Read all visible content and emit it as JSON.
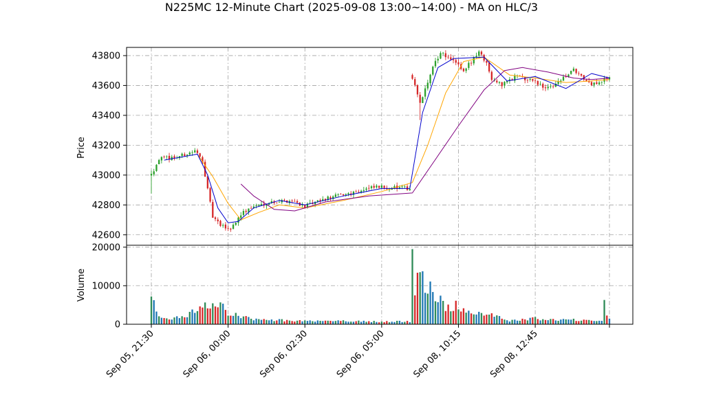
{
  "chart_data": {
    "type": "candlestick",
    "title": "N225MC 12-Minute Chart (2025-09-08 13:00~14:00) - MA on HLC/3",
    "price_panel": {
      "ylabel": "Price",
      "yticks": [
        42600,
        42800,
        43000,
        43200,
        43400,
        43600,
        43800
      ],
      "ylim": [
        42530,
        43855
      ],
      "grid": true
    },
    "volume_panel": {
      "ylabel": "Volume",
      "yticks": [
        0,
        10000,
        20000
      ],
      "ylim": [
        0,
        20500
      ],
      "grid": true
    },
    "x_tick_labels": [
      "Sep 05, 21:30",
      "Sep 06, 00:00",
      "Sep 06, 02:30",
      "Sep 06, 05:00",
      "Sep 08, 10:15",
      "Sep 08, 12:45"
    ],
    "bar_count": 180,
    "x_tick_bar_index": [
      0,
      30,
      60,
      90,
      120,
      150
    ],
    "colors": {
      "up": "#2ca02c",
      "down": "#d62728",
      "vol_up": "#1f77b4",
      "vol_down": "#d62728",
      "vol_other": "#2e8b57",
      "ma_fast": "#0000cc",
      "ma_mid": "#ffa500",
      "ma_slow": "#800080"
    },
    "price_anchors": [
      {
        "i": 0,
        "p": 43000
      },
      {
        "i": 3,
        "p": 43110
      },
      {
        "i": 10,
        "p": 43120
      },
      {
        "i": 17,
        "p": 43160
      },
      {
        "i": 20,
        "p": 43100
      },
      {
        "i": 22,
        "p": 42900
      },
      {
        "i": 24,
        "p": 42720
      },
      {
        "i": 27,
        "p": 42660
      },
      {
        "i": 31,
        "p": 42640
      },
      {
        "i": 35,
        "p": 42740
      },
      {
        "i": 40,
        "p": 42790
      },
      {
        "i": 47,
        "p": 42820
      },
      {
        "i": 55,
        "p": 42830
      },
      {
        "i": 60,
        "p": 42790
      },
      {
        "i": 70,
        "p": 42850
      },
      {
        "i": 80,
        "p": 42890
      },
      {
        "i": 88,
        "p": 42920
      },
      {
        "i": 101,
        "p": 42910
      },
      {
        "i": 102,
        "p": 43650
      },
      {
        "i": 104,
        "p": 43540
      },
      {
        "i": 105,
        "p": 43480
      },
      {
        "i": 110,
        "p": 43720
      },
      {
        "i": 113,
        "p": 43820
      },
      {
        "i": 118,
        "p": 43760
      },
      {
        "i": 122,
        "p": 43700
      },
      {
        "i": 128,
        "p": 43820
      },
      {
        "i": 131,
        "p": 43750
      },
      {
        "i": 133,
        "p": 43650
      },
      {
        "i": 137,
        "p": 43600
      },
      {
        "i": 142,
        "p": 43660
      },
      {
        "i": 148,
        "p": 43640
      },
      {
        "i": 155,
        "p": 43580
      },
      {
        "i": 160,
        "p": 43640
      },
      {
        "i": 165,
        "p": 43700
      },
      {
        "i": 172,
        "p": 43600
      },
      {
        "i": 179,
        "p": 43660
      }
    ],
    "ma_fast_line": [
      {
        "i": 5,
        "p": 43100
      },
      {
        "i": 18,
        "p": 43140
      },
      {
        "i": 22,
        "p": 43000
      },
      {
        "i": 26,
        "p": 42780
      },
      {
        "i": 30,
        "p": 42680
      },
      {
        "i": 34,
        "p": 42690
      },
      {
        "i": 40,
        "p": 42780
      },
      {
        "i": 50,
        "p": 42830
      },
      {
        "i": 60,
        "p": 42800
      },
      {
        "i": 75,
        "p": 42860
      },
      {
        "i": 90,
        "p": 42910
      },
      {
        "i": 101,
        "p": 42910
      },
      {
        "i": 106,
        "p": 43420
      },
      {
        "i": 112,
        "p": 43720
      },
      {
        "i": 118,
        "p": 43780
      },
      {
        "i": 130,
        "p": 43790
      },
      {
        "i": 139,
        "p": 43630
      },
      {
        "i": 150,
        "p": 43660
      },
      {
        "i": 162,
        "p": 43580
      },
      {
        "i": 172,
        "p": 43680
      },
      {
        "i": 179,
        "p": 43650
      }
    ],
    "ma_mid_line": [
      {
        "i": 18,
        "p": 43140
      },
      {
        "i": 24,
        "p": 42990
      },
      {
        "i": 30,
        "p": 42810
      },
      {
        "i": 35,
        "p": 42700
      },
      {
        "i": 42,
        "p": 42750
      },
      {
        "i": 50,
        "p": 42800
      },
      {
        "i": 60,
        "p": 42780
      },
      {
        "i": 75,
        "p": 42830
      },
      {
        "i": 90,
        "p": 42890
      },
      {
        "i": 102,
        "p": 42950
      },
      {
        "i": 108,
        "p": 43200
      },
      {
        "i": 115,
        "p": 43550
      },
      {
        "i": 122,
        "p": 43760
      },
      {
        "i": 130,
        "p": 43790
      },
      {
        "i": 140,
        "p": 43670
      },
      {
        "i": 150,
        "p": 43650
      },
      {
        "i": 162,
        "p": 43620
      },
      {
        "i": 172,
        "p": 43630
      },
      {
        "i": 179,
        "p": 43640
      }
    ],
    "ma_slow_line": [
      {
        "i": 35,
        "p": 42940
      },
      {
        "i": 40,
        "p": 42860
      },
      {
        "i": 48,
        "p": 42770
      },
      {
        "i": 56,
        "p": 42760
      },
      {
        "i": 68,
        "p": 42820
      },
      {
        "i": 85,
        "p": 42860
      },
      {
        "i": 102,
        "p": 42880
      },
      {
        "i": 110,
        "p": 43080
      },
      {
        "i": 120,
        "p": 43330
      },
      {
        "i": 130,
        "p": 43570
      },
      {
        "i": 138,
        "p": 43700
      },
      {
        "i": 145,
        "p": 43720
      },
      {
        "i": 155,
        "p": 43690
      },
      {
        "i": 165,
        "p": 43650
      },
      {
        "i": 172,
        "p": 43640
      },
      {
        "i": 179,
        "p": 43650
      }
    ],
    "volume_anchors": [
      {
        "i": 0,
        "v": 7200
      },
      {
        "i": 2,
        "v": 2800
      },
      {
        "i": 6,
        "v": 1200
      },
      {
        "i": 15,
        "v": 2600
      },
      {
        "i": 22,
        "v": 5200
      },
      {
        "i": 25,
        "v": 5800
      },
      {
        "i": 30,
        "v": 3200
      },
      {
        "i": 40,
        "v": 1200
      },
      {
        "i": 60,
        "v": 900
      },
      {
        "i": 90,
        "v": 700
      },
      {
        "i": 101,
        "v": 700
      },
      {
        "i": 102,
        "v": 19500
      },
      {
        "i": 103,
        "v": 7500
      },
      {
        "i": 105,
        "v": 13500
      },
      {
        "i": 108,
        "v": 9500
      },
      {
        "i": 112,
        "v": 6800
      },
      {
        "i": 116,
        "v": 4200
      },
      {
        "i": 120,
        "v": 5000
      },
      {
        "i": 125,
        "v": 2200
      },
      {
        "i": 132,
        "v": 3200
      },
      {
        "i": 140,
        "v": 900
      },
      {
        "i": 150,
        "v": 1500
      },
      {
        "i": 160,
        "v": 1100
      },
      {
        "i": 170,
        "v": 1200
      },
      {
        "i": 176,
        "v": 900
      },
      {
        "i": 177,
        "v": 6300
      },
      {
        "i": 178,
        "v": 2500
      },
      {
        "i": 179,
        "v": 1200
      }
    ]
  }
}
